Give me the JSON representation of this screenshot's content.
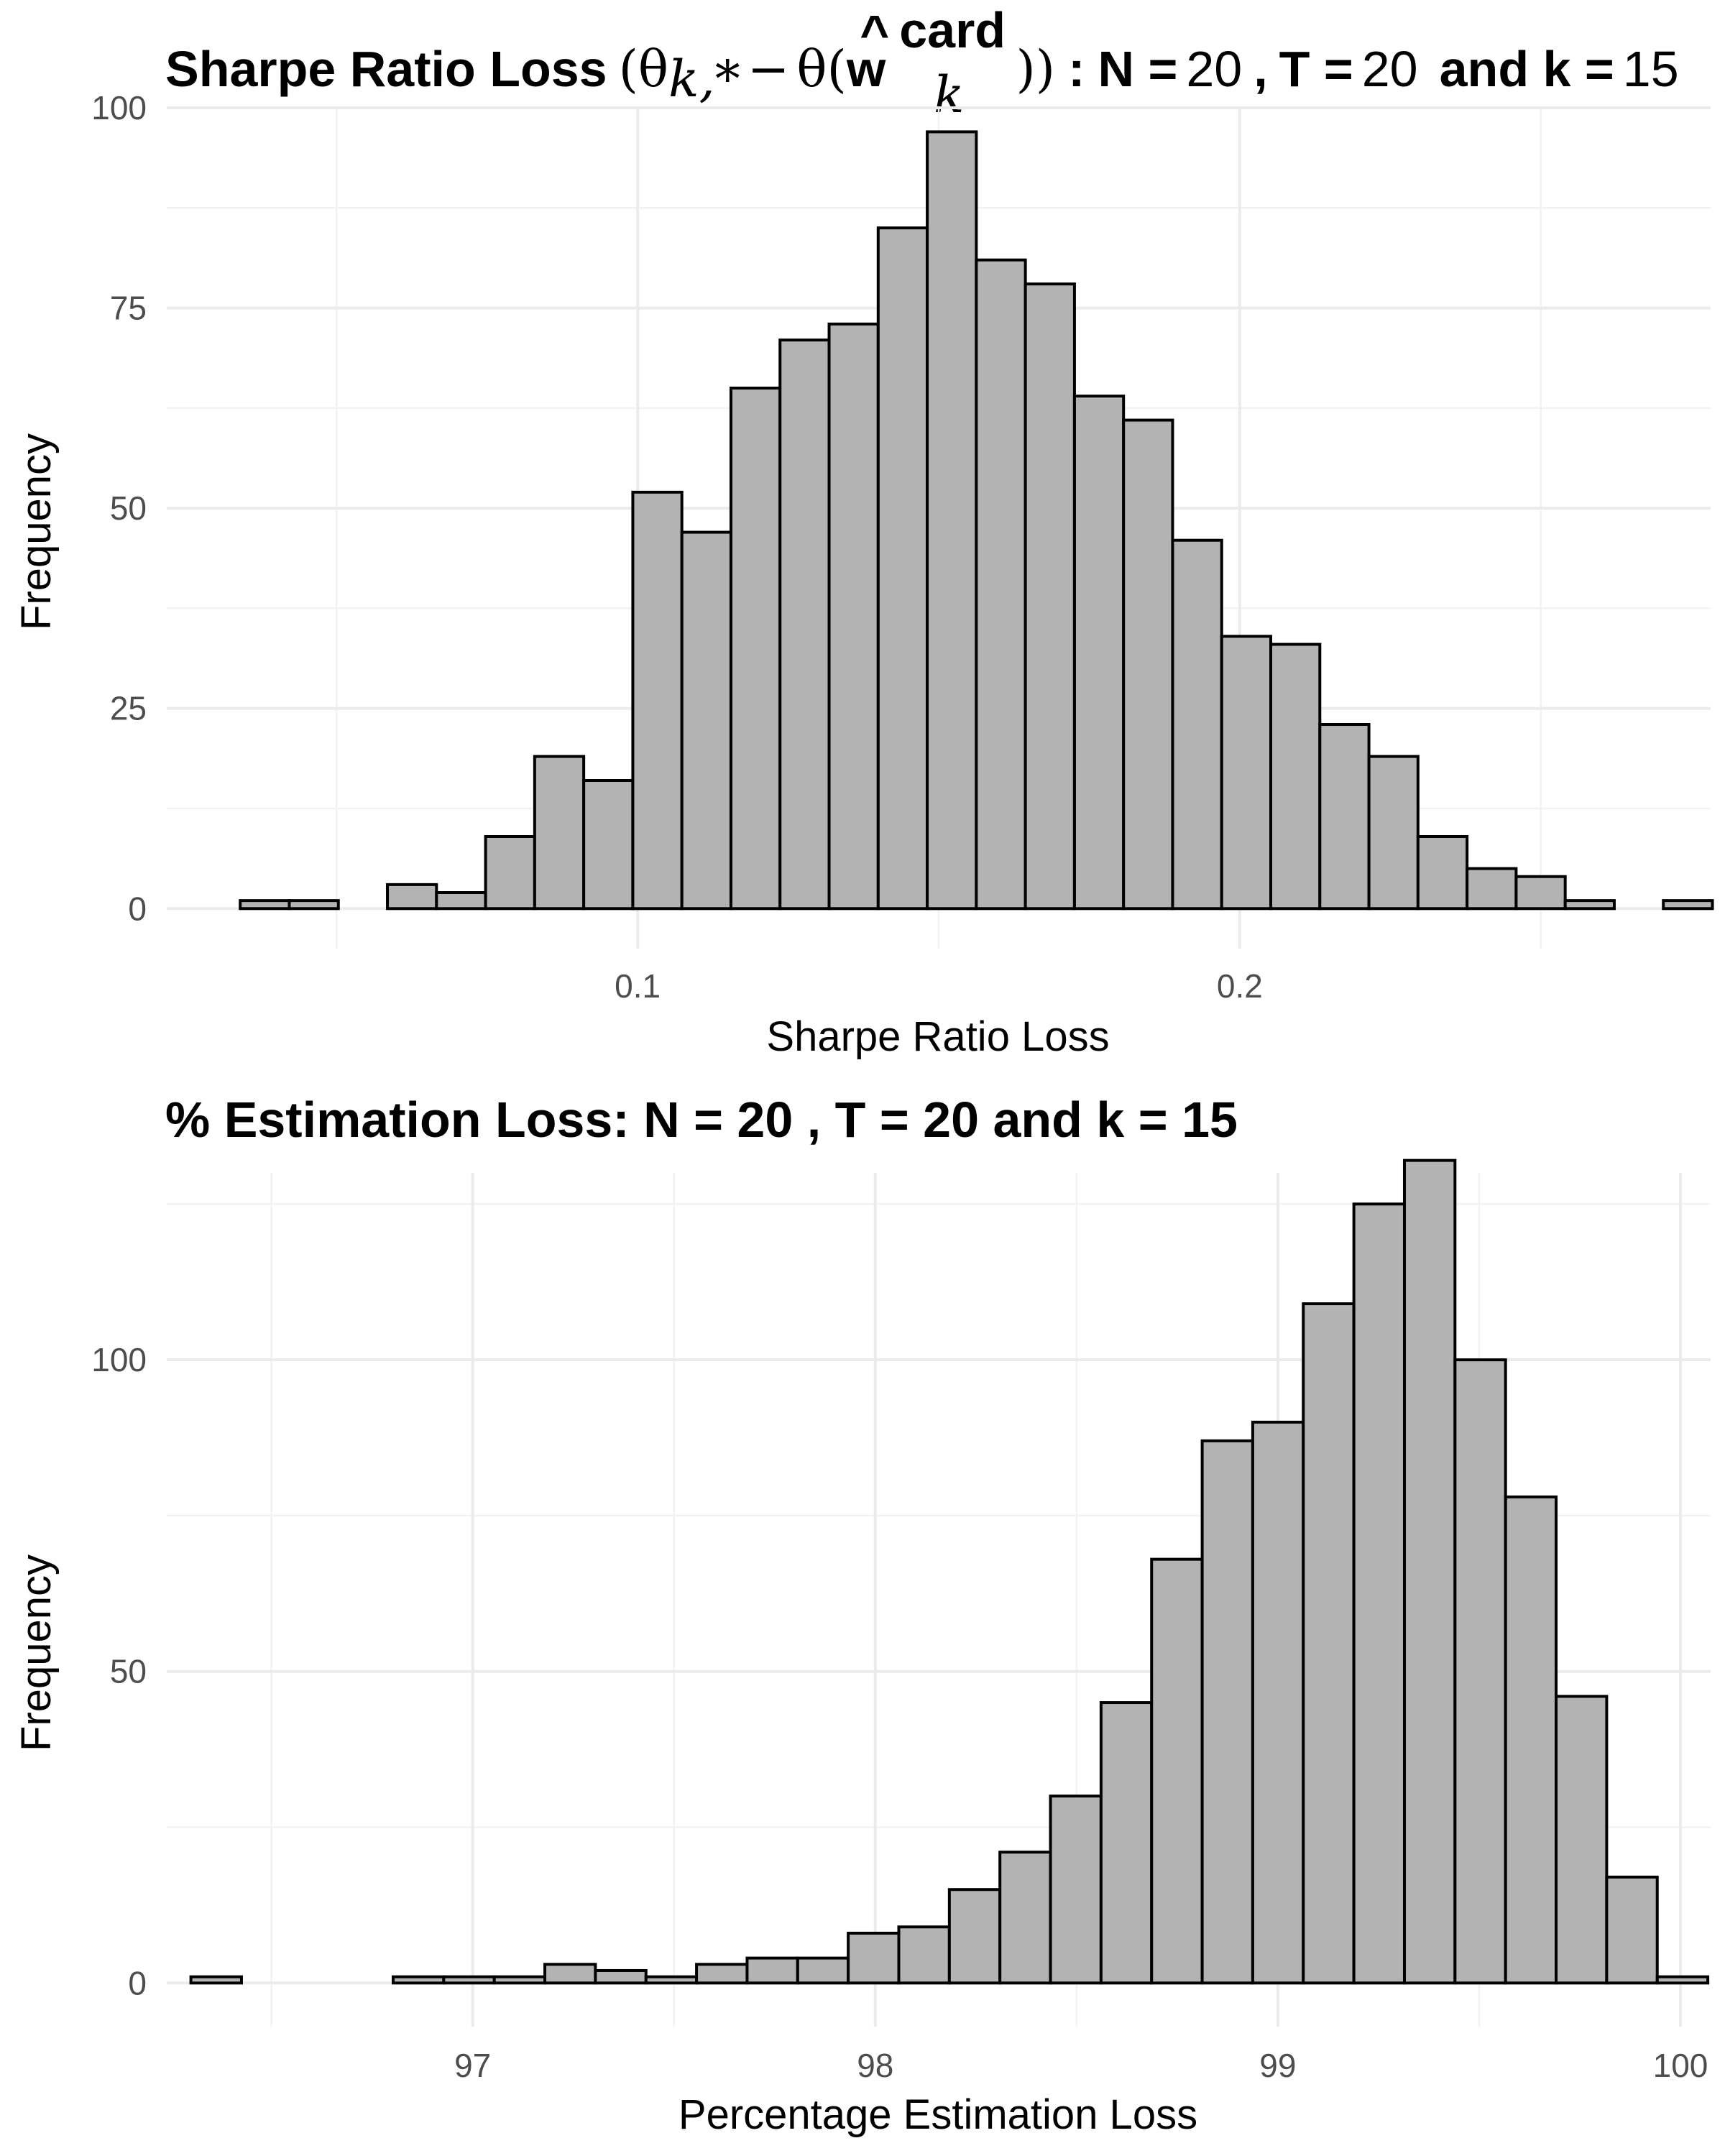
{
  "chart_data": [
    {
      "type": "bar",
      "title": "Sharpe Ratio Loss",
      "title_math": {
        "theta": "θ",
        "sub1": "k,*",
        "minus": "−",
        "w": "w",
        "hat": "^",
        "sup": "card",
        "sub2": "k"
      },
      "title_params": {
        "n_label": "N =",
        "n_value": "20",
        "t_label": "T =",
        "t_value": "20",
        "k_label": "and k =",
        "k_value": "15"
      },
      "xlabel": "Sharpe Ratio Loss",
      "ylabel": "Frequency",
      "xlim": [
        0.0218,
        0.2782
      ],
      "ylim": [
        -5,
        100
      ],
      "x_major_ticks": [
        0.1,
        0.2
      ],
      "x_tick_labels": [
        "0.1",
        "0.2"
      ],
      "x_minor_ticks": [
        0.05,
        0.15,
        0.25
      ],
      "y_major_ticks": [
        0,
        25,
        50,
        75,
        100
      ],
      "y_tick_labels": [
        "0",
        "25",
        "50",
        "75",
        "100"
      ],
      "y_minor_ticks": [
        12.5,
        37.5,
        62.5,
        87.5
      ],
      "bin_start": 0.034,
      "bin_width": 0.00815,
      "values": [
        1,
        1,
        0,
        3,
        2,
        9,
        19,
        16,
        52,
        47,
        65,
        71,
        73,
        85,
        97,
        81,
        78,
        64,
        61,
        46,
        34,
        33,
        23,
        19,
        9,
        5,
        4,
        1,
        0,
        1
      ],
      "grid": true,
      "legend": "none"
    },
    {
      "type": "bar",
      "title": "% Estimation Loss: N = 20 , T = 20 and k = 15",
      "xlabel": "Percentage Estimation Loss",
      "ylabel": "Frequency",
      "xlim": [
        96.24,
        100.075
      ],
      "ylim": [
        -7,
        130
      ],
      "x_major_ticks": [
        97,
        98,
        99,
        100
      ],
      "x_tick_labels": [
        "97",
        "98",
        "99",
        "100"
      ],
      "x_minor_ticks": [
        96.5,
        97.5,
        98.5,
        99.5
      ],
      "y_major_ticks": [
        0,
        50,
        100
      ],
      "y_tick_labels": [
        "0",
        "50",
        "100"
      ],
      "y_minor_ticks": [
        25,
        75,
        125
      ],
      "bin_start": 96.3,
      "bin_width": 0.1256,
      "values": [
        1,
        0,
        0,
        0,
        1,
        1,
        1,
        3,
        2,
        1,
        3,
        4,
        4,
        8,
        9,
        15,
        21,
        30,
        45,
        68,
        87,
        90,
        109,
        125,
        132,
        100,
        78,
        46,
        17,
        1
      ],
      "grid": true,
      "legend": "none"
    }
  ]
}
